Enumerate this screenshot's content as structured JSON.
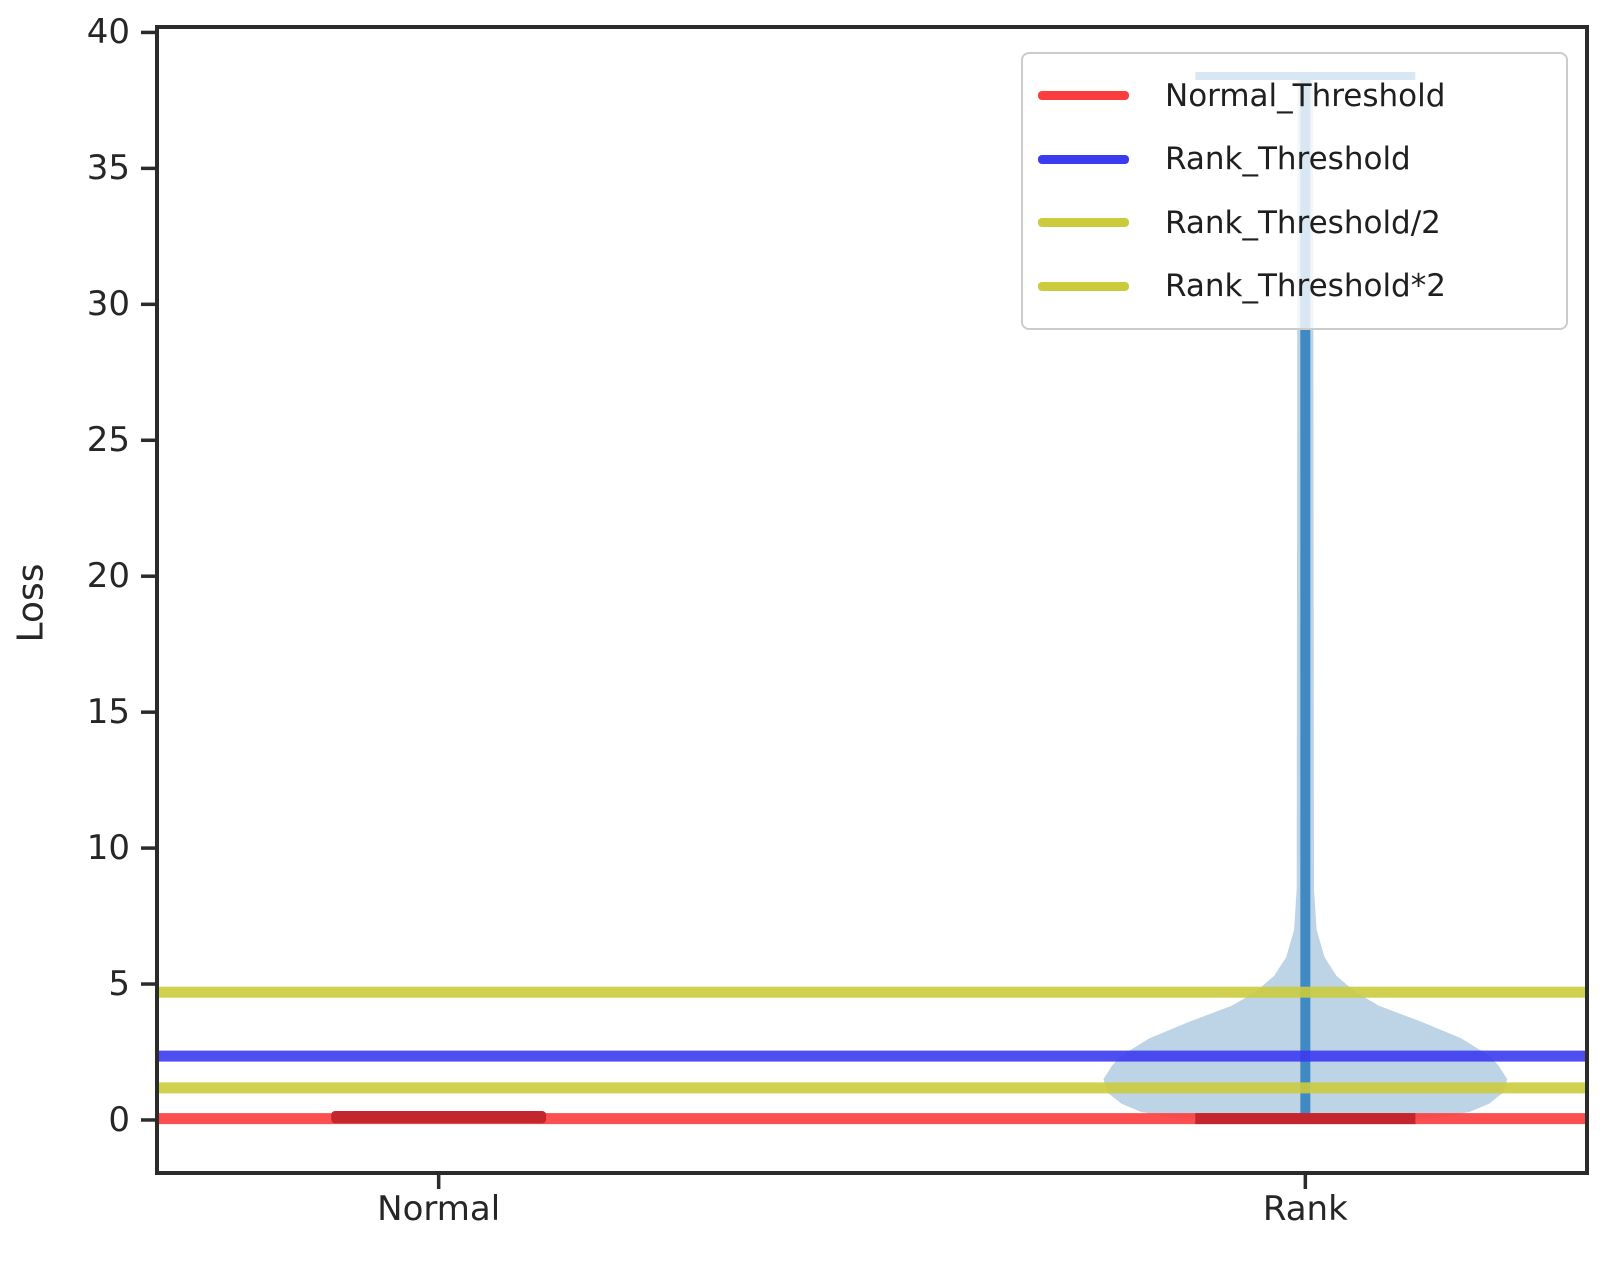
{
  "chart_data": {
    "type": "violin",
    "title": "",
    "xlabel": "",
    "ylabel": "Loss",
    "categories": [
      "Normal",
      "Rank"
    ],
    "category_positions": [
      1,
      2
    ],
    "yticks": [
      0,
      5,
      10,
      15,
      20,
      25,
      30,
      35,
      40
    ],
    "ylim": [
      -1.95,
      40.2
    ],
    "xlim": [
      0.675,
      2.325
    ],
    "grid": false,
    "legend_position": "upper right",
    "threshold_lines": [
      {
        "label": "Normal_Threshold",
        "value": 0.05,
        "color": "#fc3d3d"
      },
      {
        "label": "Rank_Threshold",
        "value": 2.35,
        "color": "#3b3bf0"
      },
      {
        "label": "Rank_Threshold/2",
        "value": 1.18,
        "color": "#cbcb3e"
      },
      {
        "label": "Rank_Threshold*2",
        "value": 4.7,
        "color": "#cbcb3e"
      }
    ],
    "violins": [
      {
        "category": "Normal",
        "position": 1,
        "body_color": "#c3262f",
        "min": -0.12,
        "max": 0.33,
        "half_width": 0.124,
        "shape": "flat-band"
      },
      {
        "category": "Rank",
        "position": 2,
        "body_color": "#bdd3e6",
        "stick_color": "#4189c3",
        "cap_color_max": "#4189c3",
        "cap_color_min": "#c3262f",
        "min": 0.05,
        "max": 38.4,
        "cap_half_width": 0.127,
        "profile": [
          [
            0.0,
            0.0
          ],
          [
            0.05,
            0.15
          ],
          [
            0.3,
            0.19
          ],
          [
            0.6,
            0.212
          ],
          [
            1.0,
            0.228
          ],
          [
            1.5,
            0.233
          ],
          [
            2.0,
            0.223
          ],
          [
            2.35,
            0.213
          ],
          [
            3.0,
            0.18
          ],
          [
            3.6,
            0.135
          ],
          [
            4.2,
            0.085
          ],
          [
            4.7,
            0.058
          ],
          [
            5.3,
            0.036
          ],
          [
            6.0,
            0.022
          ],
          [
            7.0,
            0.013
          ],
          [
            8.5,
            0.01
          ],
          [
            38.3,
            0.009
          ],
          [
            38.4,
            0.0
          ]
        ]
      }
    ],
    "axis_color": "#2b2b2b",
    "text_color": "#262626"
  }
}
